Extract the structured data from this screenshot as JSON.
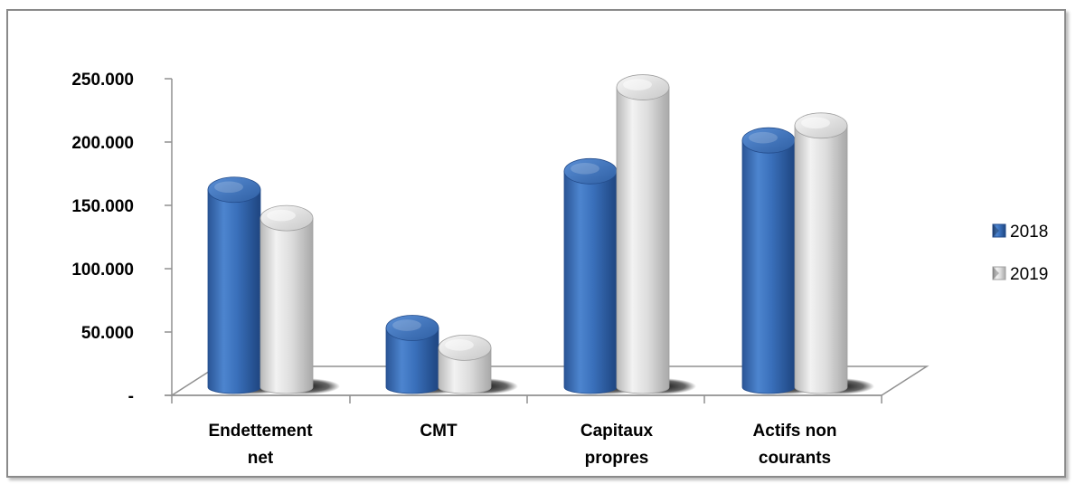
{
  "chart_data": {
    "type": "bar",
    "style": "3d-cylinder",
    "categories": [
      [
        "Endettement",
        "net"
      ],
      [
        "CMT"
      ],
      [
        "Capitaux",
        "propres"
      ],
      [
        "Actifs non",
        "courants"
      ]
    ],
    "series": [
      {
        "name": "2018",
        "values": [
          160000,
          48000,
          175000,
          200000
        ],
        "color": "#3a6fb8"
      },
      {
        "name": "2019",
        "values": [
          137000,
          32000,
          243000,
          212000
        ],
        "color": "#d0d0d0"
      }
    ],
    "yticks": [
      {
        "value": 0,
        "label": "-"
      },
      {
        "value": 50000,
        "label": "50.000"
      },
      {
        "value": 100000,
        "label": "100.000"
      },
      {
        "value": 150000,
        "label": "150.000"
      },
      {
        "value": 200000,
        "label": "200.000"
      },
      {
        "value": 250000,
        "label": "250.000"
      }
    ],
    "ylim": [
      0,
      250000
    ],
    "legend_position": "right",
    "grid": false
  }
}
